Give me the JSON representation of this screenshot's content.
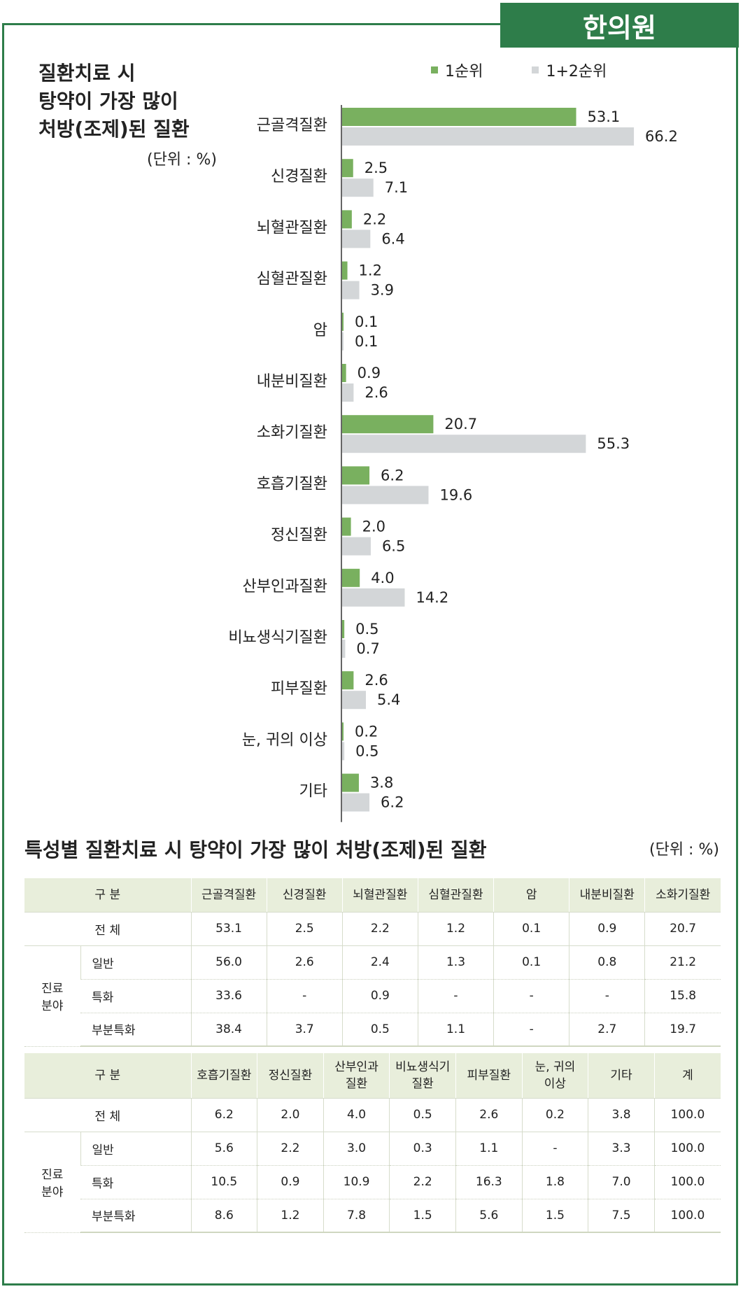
{
  "badge": "한의원",
  "chart_title_lines": [
    "질환치료 시",
    "탕약이 가장 많이",
    "처방(조제)된 질환"
  ],
  "unit": "(단위 : %)",
  "legend": [
    "1순위",
    "1+2순위"
  ],
  "colors": {
    "rank1": "#79b05f",
    "rank12": "#d3d6d8",
    "accent": "#2e7d4a"
  },
  "chart_data": {
    "type": "bar",
    "orientation": "horizontal",
    "categories": [
      "근골격질환",
      "신경질환",
      "뇌혈관질환",
      "심혈관질환",
      "암",
      "내분비질환",
      "소화기질환",
      "호흡기질환",
      "정신질환",
      "산부인과질환",
      "비뇨생식기질환",
      "피부질환",
      "눈, 귀의 이상",
      "기타"
    ],
    "series": [
      {
        "name": "1순위",
        "values": [
          53.1,
          2.5,
          2.2,
          1.2,
          0.1,
          0.9,
          20.7,
          6.2,
          2.0,
          4.0,
          0.5,
          2.6,
          0.2,
          3.8
        ],
        "color": "#79b05f"
      },
      {
        "name": "1+2순위",
        "values": [
          66.2,
          7.1,
          6.4,
          3.9,
          0.1,
          2.6,
          55.3,
          19.6,
          6.5,
          14.2,
          0.7,
          5.4,
          0.5,
          6.2
        ],
        "color": "#d3d6d8"
      }
    ],
    "value_labels": [
      [
        "53.1",
        "2.5",
        "2.2",
        "1.2",
        "0.1",
        "0.9",
        "20.7",
        "6.2",
        "2.0",
        "4.0",
        "0.5",
        "2.6",
        "0.2",
        "3.8"
      ],
      [
        "66.2",
        "7.1",
        "6.4",
        "3.9",
        "0.1",
        "2.6",
        "55.3",
        "19.6",
        "6.5",
        "14.2",
        "0.7",
        "5.4",
        "0.5",
        "6.2"
      ]
    ],
    "xlim": [
      0,
      100
    ],
    "grid": false,
    "legend_position": "top-right"
  },
  "table_title": "특성별 질환치료 시 탕약이 가장 많이 처방(조제)된 질환",
  "table1": {
    "header_label": "구 분",
    "columns": [
      "근골격질환",
      "신경질환",
      "뇌혈관질환",
      "심혈관질환",
      "암",
      "내분비질환",
      "소화기질환"
    ],
    "total_label": "전 체",
    "total": [
      "53.1",
      "2.5",
      "2.2",
      "1.2",
      "0.1",
      "0.9",
      "20.7"
    ],
    "group_label": [
      "진료",
      "분야"
    ],
    "rows": [
      {
        "label": "일반",
        "values": [
          "56.0",
          "2.6",
          "2.4",
          "1.3",
          "0.1",
          "0.8",
          "21.2"
        ]
      },
      {
        "label": "특화",
        "values": [
          "33.6",
          "-",
          "0.9",
          "-",
          "-",
          "-",
          "15.8"
        ]
      },
      {
        "label": "부분특화",
        "values": [
          "38.4",
          "3.7",
          "0.5",
          "1.1",
          "-",
          "2.7",
          "19.7"
        ]
      }
    ]
  },
  "table2": {
    "header_label": "구 분",
    "columns": [
      [
        "호흡기질환"
      ],
      [
        "정신질환"
      ],
      [
        "산부인과",
        "질환"
      ],
      [
        "비뇨생식기",
        "질환"
      ],
      [
        "피부질환"
      ],
      [
        "눈, 귀의",
        "이상"
      ],
      [
        "기타"
      ],
      [
        "계"
      ]
    ],
    "total_label": "전 체",
    "total": [
      "6.2",
      "2.0",
      "4.0",
      "0.5",
      "2.6",
      "0.2",
      "3.8",
      "100.0"
    ],
    "group_label": [
      "진료",
      "분야"
    ],
    "rows": [
      {
        "label": "일반",
        "values": [
          "5.6",
          "2.2",
          "3.0",
          "0.3",
          "1.1",
          "-",
          "3.3",
          "100.0"
        ]
      },
      {
        "label": "특화",
        "values": [
          "10.5",
          "0.9",
          "10.9",
          "2.2",
          "16.3",
          "1.8",
          "7.0",
          "100.0"
        ]
      },
      {
        "label": "부분특화",
        "values": [
          "8.6",
          "1.2",
          "7.8",
          "1.5",
          "5.6",
          "1.5",
          "7.5",
          "100.0"
        ]
      }
    ]
  }
}
